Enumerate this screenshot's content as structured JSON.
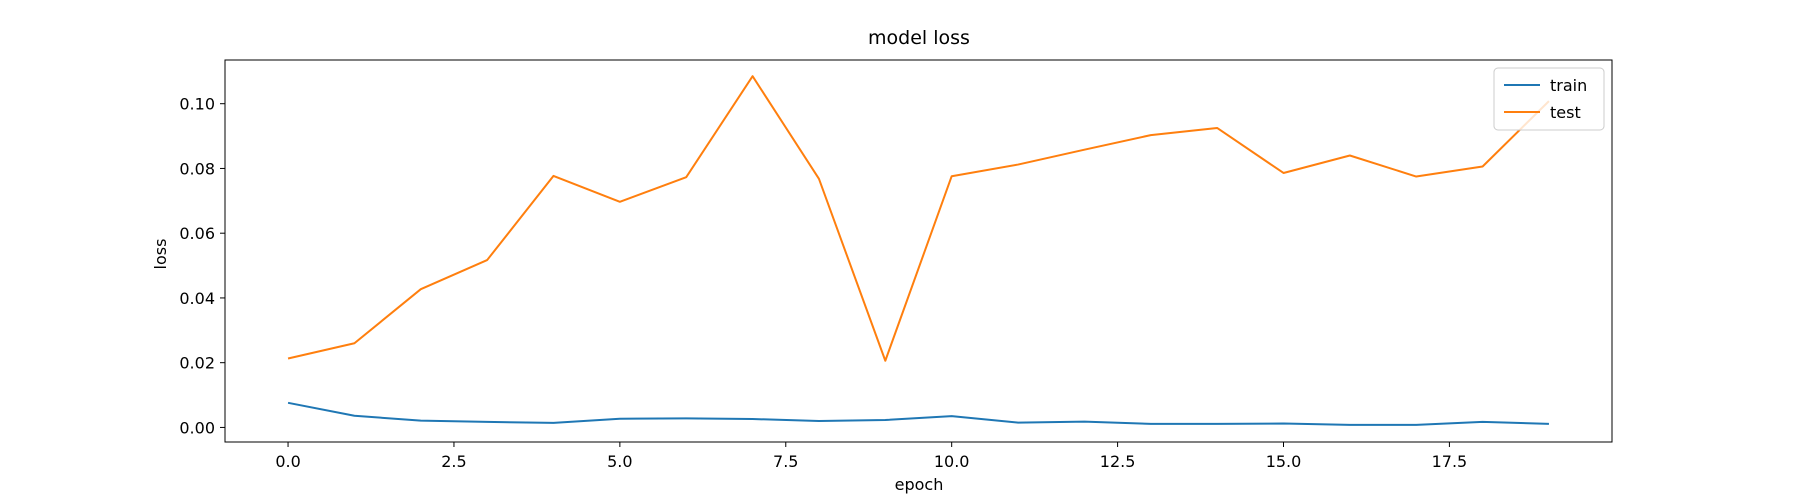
{
  "chart_data": {
    "type": "line",
    "title": "model loss",
    "xlabel": "epoch",
    "ylabel": "loss",
    "xlim": [
      -0.95,
      19.95
    ],
    "ylim": [
      -0.0045,
      0.1135
    ],
    "xticks": [
      0.0,
      2.5,
      5.0,
      7.5,
      10.0,
      12.5,
      15.0,
      17.5
    ],
    "xtick_labels": [
      "0.0",
      "2.5",
      "5.0",
      "7.5",
      "10.0",
      "12.5",
      "15.0",
      "17.5"
    ],
    "yticks": [
      0.0,
      0.02,
      0.04,
      0.06,
      0.08,
      0.1
    ],
    "ytick_labels": [
      "0.00",
      "0.02",
      "0.04",
      "0.06",
      "0.08",
      "0.10"
    ],
    "grid": false,
    "legend_position": "top-right",
    "x": [
      0,
      1,
      2,
      3,
      4,
      5,
      6,
      7,
      8,
      9,
      10,
      11,
      12,
      13,
      14,
      15,
      16,
      17,
      18,
      19
    ],
    "series": [
      {
        "name": "train",
        "color": "#1f77b4",
        "values": [
          0.0076,
          0.0036,
          0.0021,
          0.0017,
          0.0014,
          0.0027,
          0.0028,
          0.0026,
          0.002,
          0.0023,
          0.0035,
          0.0015,
          0.0018,
          0.0011,
          0.0011,
          0.0012,
          0.0008,
          0.0008,
          0.0017,
          0.0011
        ]
      },
      {
        "name": "test",
        "color": "#ff7f0e",
        "values": [
          0.0213,
          0.026,
          0.0427,
          0.0517,
          0.0777,
          0.0697,
          0.0773,
          0.1085,
          0.0768,
          0.0206,
          0.0776,
          0.0812,
          0.0858,
          0.0903,
          0.0925,
          0.0786,
          0.084,
          0.0775,
          0.0806,
          0.1008
        ]
      }
    ]
  }
}
